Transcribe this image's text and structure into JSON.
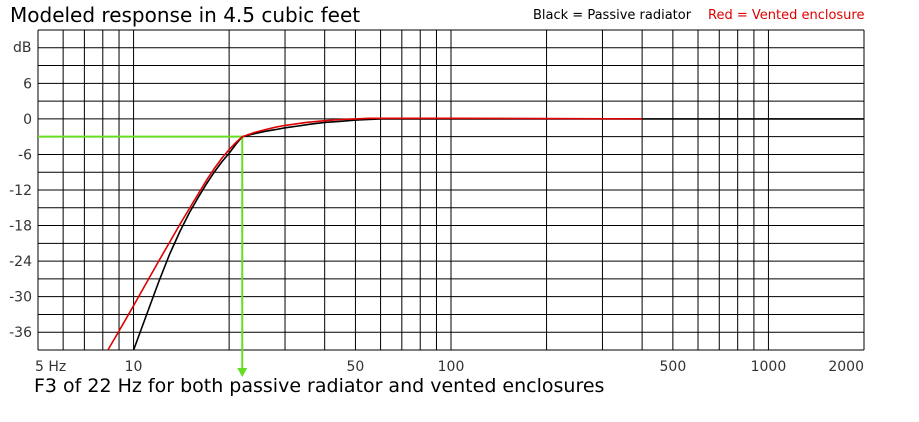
{
  "chart_data": {
    "type": "line",
    "title": "Modeled response in 4.5 cubic feet",
    "ylabel": "dB",
    "annotation": "F3 of 22 Hz for both passive radiator and vented enclosures",
    "x_scale": "log",
    "xlim": [
      5,
      2000
    ],
    "ylim": [
      -39,
      15
    ],
    "grid": true,
    "x_tick_labels": [
      {
        "value": 5,
        "label": "5 Hz"
      },
      {
        "value": 10,
        "label": "10"
      },
      {
        "value": 50,
        "label": "50"
      },
      {
        "value": 100,
        "label": "100"
      },
      {
        "value": 500,
        "label": "500"
      },
      {
        "value": 1000,
        "label": "1000"
      },
      {
        "value": 2000,
        "label": "2000"
      }
    ],
    "y_ticks": [
      6,
      0,
      -6,
      -12,
      -18,
      -24,
      -30,
      -36
    ],
    "legend": [
      {
        "text": "Black = Passive radiator",
        "color": "#000000"
      },
      {
        "text": "Red = Vented enclosure",
        "color": "#e00000"
      }
    ],
    "series": [
      {
        "color": "#000000",
        "x": [
          10,
          11,
          12,
          13,
          14,
          15,
          16,
          17,
          18,
          19,
          20,
          21,
          22,
          24,
          26,
          28,
          30,
          33,
          36,
          40,
          45,
          50,
          55,
          60,
          70,
          80,
          100,
          150,
          200,
          300,
          500,
          1000,
          2000
        ],
        "y": [
          -39,
          -33,
          -27.5,
          -22.8,
          -19,
          -15.8,
          -13.2,
          -10.9,
          -8.9,
          -7.2,
          -5.8,
          -4.3,
          -3,
          -2.5,
          -2.1,
          -1.8,
          -1.5,
          -1.2,
          -0.9,
          -0.6,
          -0.4,
          -0.2,
          -0.1,
          0,
          0,
          0,
          0,
          0,
          0,
          0,
          0,
          0,
          0
        ]
      },
      {
        "color": "#e00000",
        "x": [
          8.3,
          9,
          10,
          11,
          12,
          13,
          14,
          15,
          16,
          17,
          18,
          19,
          20,
          21,
          22,
          24,
          26,
          28,
          30,
          35,
          40,
          45,
          50,
          55,
          60,
          70,
          100,
          200,
          400
        ],
        "y": [
          -39,
          -35.8,
          -31.5,
          -27.6,
          -24,
          -20.8,
          -17.8,
          -15.1,
          -12.6,
          -10.3,
          -8.3,
          -6.6,
          -5.2,
          -4,
          -3,
          -2.3,
          -1.8,
          -1.4,
          -1.1,
          -0.6,
          -0.3,
          -0.1,
          0,
          0.1,
          0.1,
          0.1,
          0.1,
          0.05,
          0
        ]
      }
    ],
    "marker": {
      "x": 22,
      "y": -3,
      "color": "#66dd22"
    }
  }
}
